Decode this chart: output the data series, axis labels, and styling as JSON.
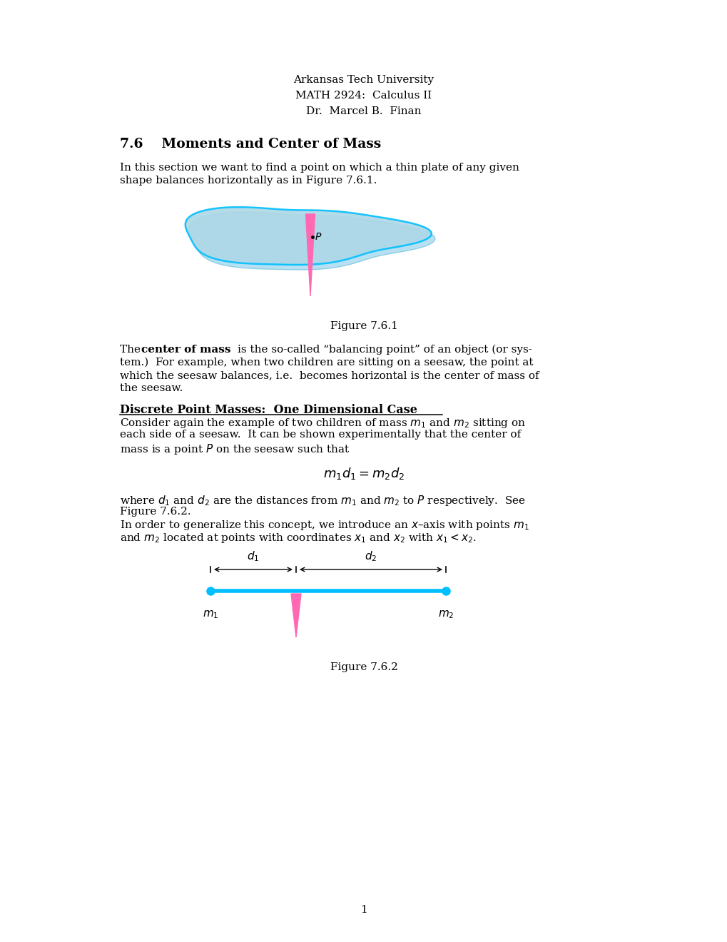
{
  "background_color": "#ffffff",
  "header_lines": [
    "Arkansas Tech University",
    "MATH 2924:  Calculus II",
    "Dr.  Marcel B.  Finan"
  ],
  "section_title": "7.6    Moments and Center of Mass",
  "figure1_caption": "Figure 7.6.1",
  "plate_color": "#ADD8E6",
  "plate_edge_color": "#00BFFF",
  "fulcrum_color": "#FF69B4",
  "seesaw_color": "#00BFFF",
  "figure2_caption": "Figure 7.6.2",
  "page_number": "1"
}
